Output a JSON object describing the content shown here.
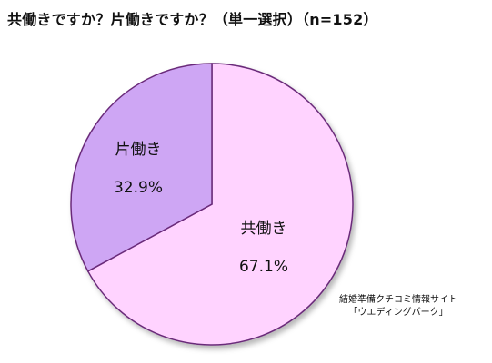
{
  "chart_data": {
    "type": "pie",
    "title": "共働きですか？片働きですか？（単一選択）（n=152）",
    "categories": [
      "共働き",
      "片働き"
    ],
    "values": [
      67.1,
      32.9
    ],
    "value_labels": [
      "67.1%",
      "32.9%"
    ],
    "colors": [
      "#ffd3ff",
      "#cea6f4"
    ],
    "edge_color": "#6b2c7a"
  },
  "source": {
    "line1": "結婚準備クチコミ情報サイト",
    "line2": "「ウエディングパーク」"
  }
}
